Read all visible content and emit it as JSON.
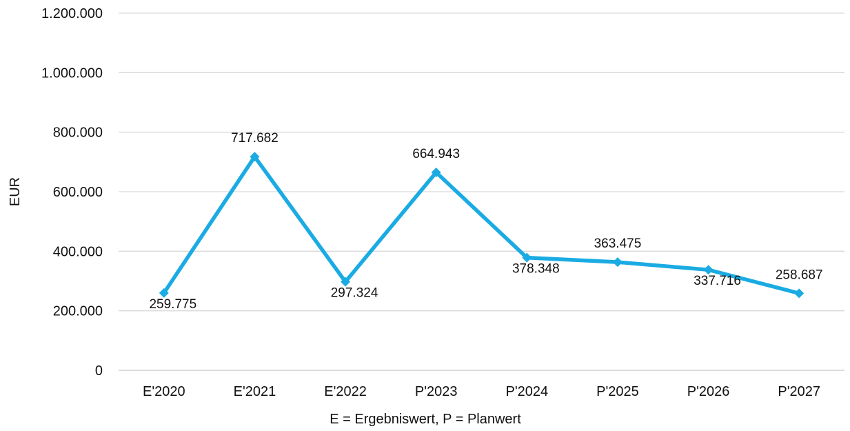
{
  "chart_data": {
    "type": "line",
    "title": "",
    "xlabel": "E = Ergebniswert, P = Planwert",
    "ylabel": "EUR",
    "categories": [
      "E'2020",
      "E'2021",
      "E'2022",
      "P'2023",
      "P'2024",
      "P'2025",
      "P'2026",
      "P'2027"
    ],
    "series": [
      {
        "values": [
          259775,
          717682,
          297324,
          664943,
          378348,
          363475,
          337716,
          258687
        ],
        "labels": [
          "259.775",
          "717.682",
          "297.324",
          "664.943",
          "378.348",
          "363.475",
          "337.716",
          "258.687"
        ],
        "label_positions": [
          "below",
          "above",
          "below",
          "above",
          "below",
          "above",
          "below",
          "above"
        ],
        "color": "#1aabe3",
        "marker": "diamond"
      }
    ],
    "ylim": [
      0,
      1200000
    ],
    "yticks": [
      0,
      200000,
      400000,
      600000,
      800000,
      1000000,
      1200000
    ],
    "ytick_labels": [
      "0",
      "200.000",
      "400.000",
      "600.000",
      "800.000",
      "1.000.000",
      "1.200.000"
    ],
    "grid": true,
    "grid_color": "#d9d9d9",
    "legend": "none"
  }
}
